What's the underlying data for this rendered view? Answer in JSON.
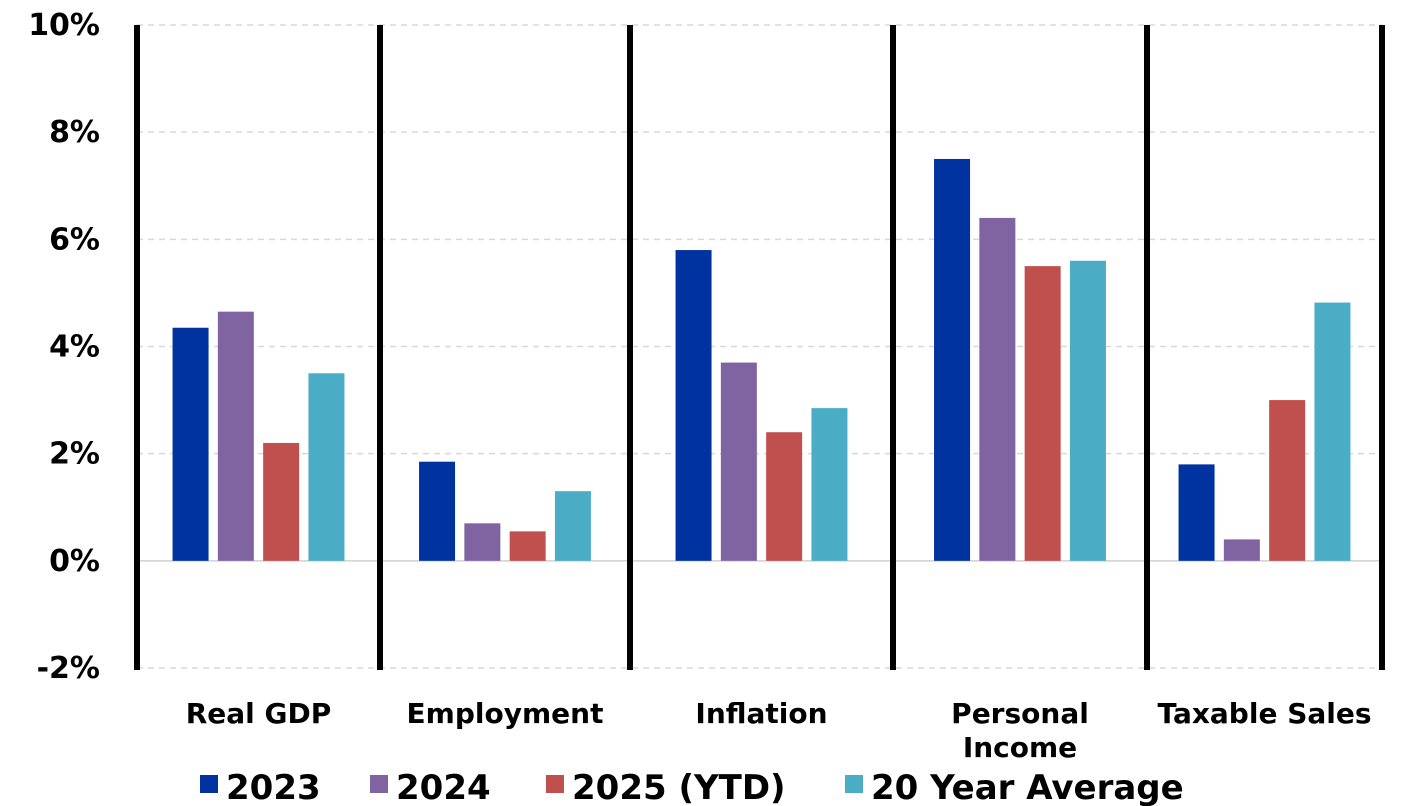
{
  "chart_data": {
    "type": "bar",
    "categories": [
      "Real GDP",
      "Employment",
      "Inflation",
      "Personal\nIncome",
      "Taxable Sales"
    ],
    "series": [
      {
        "name": "2023",
        "color": "#0033A0",
        "values": [
          4.35,
          1.85,
          5.8,
          7.5,
          1.8
        ]
      },
      {
        "name": "2024",
        "color": "#8064A2",
        "values": [
          4.65,
          0.7,
          3.7,
          6.4,
          0.4
        ]
      },
      {
        "name": "2025 (YTD)",
        "color": "#C0504D",
        "values": [
          2.2,
          0.55,
          2.4,
          5.5,
          3.0
        ]
      },
      {
        "name": "20 Year Average",
        "color": "#4BACC6",
        "values": [
          3.5,
          1.3,
          2.85,
          5.6,
          4.82
        ]
      }
    ],
    "yticks": [
      "10%",
      "8%",
      "6%",
      "4%",
      "2%",
      "0%",
      "-2%"
    ],
    "ylim": [
      -2,
      10
    ],
    "grid": true,
    "legend": "bottom"
  }
}
